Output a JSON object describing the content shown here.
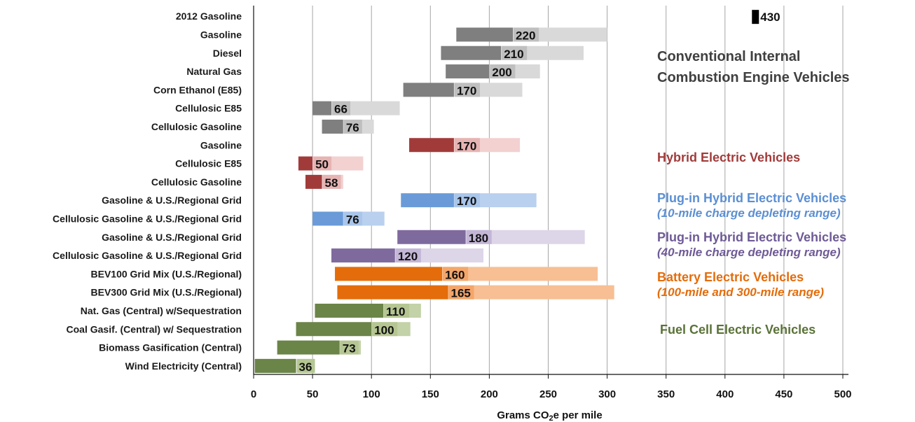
{
  "chart_data": {
    "type": "bar",
    "xlabel": "Grams CO",
    "xlabel_sub": "2",
    "xlabel_end": "e per mile",
    "xlim": [
      0,
      500
    ],
    "xticks": [
      "0",
      "50",
      "100",
      "150",
      "200",
      "250",
      "300",
      "350",
      "400",
      "450",
      "500"
    ],
    "grid": "vertical",
    "bars": [
      {
        "label": "2012 Gasoline",
        "value": 430,
        "value_label": "430",
        "low": 430,
        "high": 430,
        "group": "conventional"
      },
      {
        "label": "Gasoline",
        "value": 220,
        "value_label": "220",
        "low": 172,
        "high": 300,
        "group": "conventional"
      },
      {
        "label": "Diesel",
        "value": 210,
        "value_label": "210",
        "low": 159,
        "high": 280,
        "group": "conventional"
      },
      {
        "label": "Natural Gas",
        "value": 200,
        "value_label": "200",
        "low": 163,
        "high": 243,
        "group": "conventional"
      },
      {
        "label": "Corn Ethanol (E85)",
        "value": 170,
        "value_label": "170",
        "low": 127,
        "high": 228,
        "group": "conventional"
      },
      {
        "label": "Cellulosic E85",
        "value": 66,
        "value_label": "66",
        "low": 50,
        "high": 124,
        "group": "conventional"
      },
      {
        "label": "Cellulosic Gasoline",
        "value": 76,
        "value_label": "76",
        "low": 58,
        "high": 102,
        "group": "conventional"
      },
      {
        "label": "Gasoline",
        "value": 170,
        "value_label": "170",
        "low": 132,
        "high": 226,
        "group": "hybrid"
      },
      {
        "label": "Cellulosic E85",
        "value": 50,
        "value_label": "50",
        "low": 38,
        "high": 93,
        "group": "hybrid"
      },
      {
        "label": "Cellulosic Gasoline",
        "value": 58,
        "value_label": "58",
        "low": 44,
        "high": 76,
        "group": "hybrid"
      },
      {
        "label": "Gasoline & U.S./Regional Grid",
        "value": 170,
        "value_label": "170",
        "low": 125,
        "high": 240,
        "group": "phev10"
      },
      {
        "label": "Cellulosic Gasoline & U.S./Regional Grid",
        "value": 76,
        "value_label": "76",
        "low": 50,
        "high": 111,
        "group": "phev10"
      },
      {
        "label": "Gasoline & U.S./Regional Grid",
        "value": 180,
        "value_label": "180",
        "low": 122,
        "high": 281,
        "group": "phev40"
      },
      {
        "label": "Cellulosic Gasoline & U.S./Regional Grid",
        "value": 120,
        "value_label": "120",
        "low": 66,
        "high": 195,
        "group": "phev40"
      },
      {
        "label": "BEV100 Grid Mix (U.S./Regional)",
        "value": 160,
        "value_label": "160",
        "low": 69,
        "high": 292,
        "group": "bev"
      },
      {
        "label": "BEV300 Grid Mix (U.S./Regional)",
        "value": 165,
        "value_label": "165",
        "low": 71,
        "high": 306,
        "group": "bev"
      },
      {
        "label": "Nat. Gas (Central) w/Sequestration",
        "value": 110,
        "value_label": "110",
        "low": 52,
        "high": 142,
        "group": "fcev"
      },
      {
        "label": "Coal Gasif. (Central) w/ Sequestration",
        "value": 100,
        "value_label": "100",
        "low": 36,
        "high": 133,
        "group": "fcev"
      },
      {
        "label": "Biomass Gasification (Central)",
        "value": 73,
        "value_label": "73",
        "low": 20,
        "high": 91,
        "group": "fcev"
      },
      {
        "label": "Wind Electricity (Central)",
        "value": 36,
        "value_label": "36",
        "low": 1,
        "high": 36,
        "group": "fcev"
      }
    ],
    "groups": {
      "conventional": {
        "dark": "#7f7f7f",
        "light": "#d9d9d9",
        "value_bg": "#bfbfbf"
      },
      "hybrid": {
        "dark": "#a13b3a",
        "light": "#f2d1d0",
        "value_bg": "#e6b4b3"
      },
      "phev10": {
        "dark": "#6a9bd8",
        "light": "#b9d0ee",
        "value_bg": "#a9c5ea"
      },
      "phev40": {
        "dark": "#7f6a9e",
        "light": "#ddd5e8",
        "value_bg": "#c3b6d6"
      },
      "bev": {
        "dark": "#e46c0a",
        "light": "#f7bf93",
        "value_bg": "#f4a66a"
      },
      "fcev": {
        "dark": "#6b8448",
        "light": "#c3d2a7",
        "value_bg": "#b5c692"
      }
    }
  },
  "legend": {
    "conventional": {
      "title": "Conventional Internal Combustion Engine Vehicles",
      "color": "#404040"
    },
    "hybrid": {
      "title": "Hybrid Electric Vehicles",
      "color": "#a13b3a"
    },
    "phev10": {
      "title": "Plug-in Hybrid Electric Vehicles",
      "sub": "(10-mile charge depleting range)",
      "color": "#5b8fd3"
    },
    "phev40": {
      "title": "Plug-in Hybrid Electric Vehicles",
      "sub": "(40-mile charge depleting range)",
      "color": "#6e5a96"
    },
    "bev": {
      "title": "Battery Electric Vehicles",
      "sub": "(100-mile and 300-mile range)",
      "color": "#e46c0a"
    },
    "fcev": {
      "title": "Fuel Cell Electric Vehicles",
      "color": "#5a7238"
    }
  }
}
